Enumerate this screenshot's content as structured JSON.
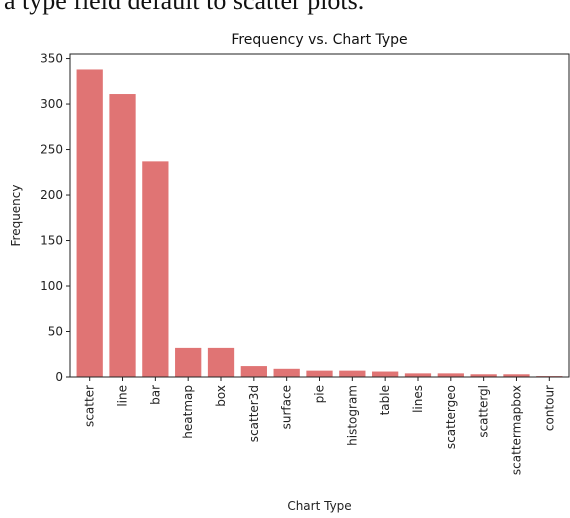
{
  "caption_fragment": "a type field default to scatter plots.",
  "chart_data": {
    "type": "bar",
    "title": "Frequency vs. Chart Type",
    "xlabel": "Chart Type",
    "ylabel": "Frequency",
    "ylim": [
      0,
      355
    ],
    "yticks": [
      0,
      50,
      100,
      150,
      200,
      250,
      300,
      350
    ],
    "categories": [
      "scatter",
      "line",
      "bar",
      "heatmap",
      "box",
      "scatter3d",
      "surface",
      "pie",
      "histogram",
      "table",
      "lines",
      "scattergeo",
      "scattergl",
      "scattermapbox",
      "contour"
    ],
    "values": [
      338,
      311,
      237,
      32,
      32,
      12,
      9,
      7,
      7,
      6,
      4,
      4,
      3,
      3,
      1
    ],
    "bar_color": "#e07474",
    "grid": false,
    "legend": "none"
  }
}
